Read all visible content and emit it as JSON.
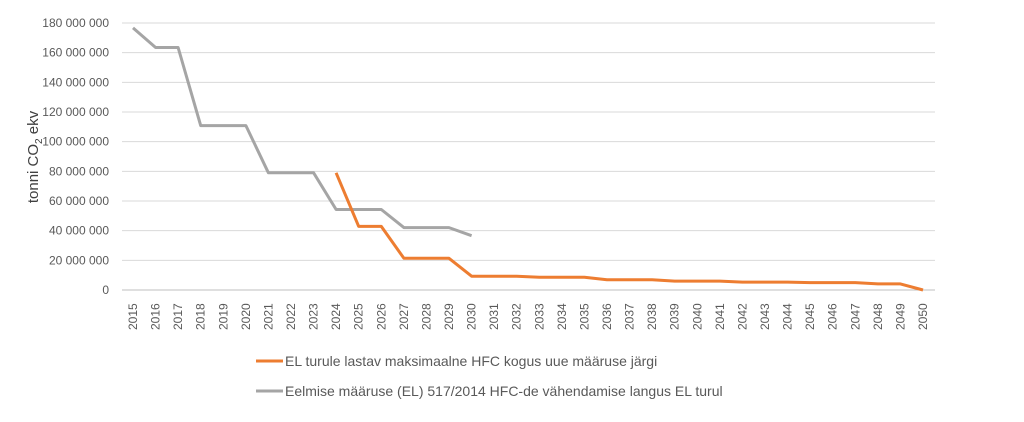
{
  "chart_data": {
    "type": "line",
    "title": "",
    "xlabel": "",
    "ylabel": "tonni CO₂ ekv",
    "ylabel_main": "tonni CO",
    "ylabel_sub": "2",
    "ylabel_tail": " ekv",
    "ylim": [
      0,
      180000000
    ],
    "yticks": [
      "0",
      "20 000 000",
      "40 000 000",
      "60 000 000",
      "80 000 000",
      "100 000 000",
      "120 000 000",
      "140 000 000",
      "160 000 000",
      "180 000 000"
    ],
    "x": [
      "2015",
      "2016",
      "2017",
      "2018",
      "2019",
      "2020",
      "2021",
      "2022",
      "2023",
      "2024",
      "2025",
      "2026",
      "2027",
      "2028",
      "2029",
      "2030",
      "2031",
      "2032",
      "2033",
      "2034",
      "2035",
      "2036",
      "2037",
      "2038",
      "2039",
      "2040",
      "2041",
      "2042",
      "2043",
      "2044",
      "2045",
      "2046",
      "2047",
      "2048",
      "2049",
      "2050"
    ],
    "grid": true,
    "legend_position": "bottom",
    "series": [
      {
        "name": "EL turule lastav maksimaalne HFC kogus uue määruse järgi",
        "color": "#ED7D31",
        "values": [
          null,
          null,
          null,
          null,
          null,
          null,
          null,
          null,
          null,
          79000000,
          42900000,
          42900000,
          21400000,
          21400000,
          21400000,
          9300000,
          9300000,
          9300000,
          8600000,
          8600000,
          8600000,
          6900000,
          6900000,
          6900000,
          6000000,
          6000000,
          6000000,
          5300000,
          5300000,
          5300000,
          5000000,
          5000000,
          5000000,
          4100000,
          4100000,
          0
        ]
      },
      {
        "name": "Eelmise määruse (EL) 517/2014 HFC-de vähendamise langus EL turul",
        "color": "#A5A5A5",
        "values": [
          176700000,
          163500000,
          163500000,
          110800000,
          110800000,
          110800000,
          79000000,
          79000000,
          79000000,
          54300000,
          54300000,
          54300000,
          42100000,
          42100000,
          42100000,
          36600000,
          null,
          null,
          null,
          null,
          null,
          null,
          null,
          null,
          null,
          null,
          null,
          null,
          null,
          null,
          null,
          null,
          null,
          null,
          null,
          null
        ]
      }
    ]
  }
}
